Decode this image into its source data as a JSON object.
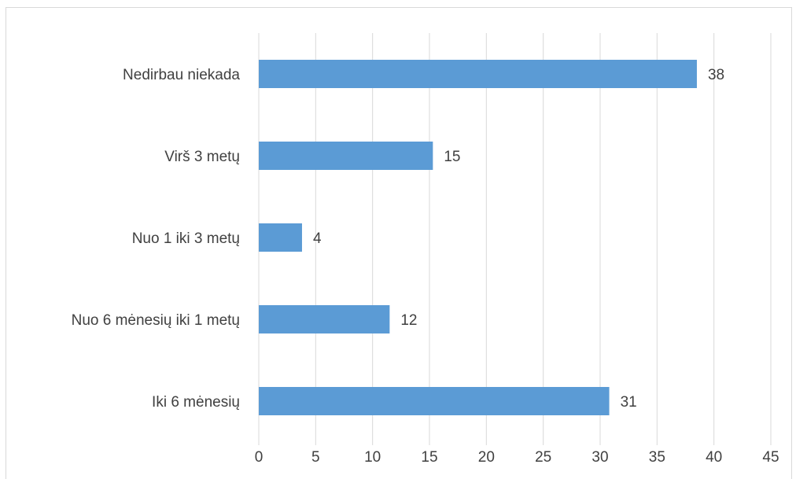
{
  "chart_data": {
    "type": "bar",
    "orientation": "horizontal",
    "title": "",
    "xlabel": "",
    "ylabel": "",
    "categories": [
      "Nedirbau niekada",
      "Virš 3 metų",
      "Nuo 1 iki 3 metų",
      "Nuo 6 mėnesių iki 1 metų",
      "Iki 6 mėnesių"
    ],
    "values": [
      38.5,
      15.3,
      3.8,
      11.5,
      30.8
    ],
    "data_labels": [
      "38",
      "15",
      "4",
      "12",
      "31"
    ],
    "xlim": [
      0,
      45
    ],
    "xticks": [
      0,
      5,
      10,
      15,
      20,
      25,
      30,
      35,
      40,
      45
    ],
    "xtick_labels": [
      "0",
      "5",
      "10",
      "15",
      "20",
      "25",
      "30",
      "35",
      "40",
      "45"
    ],
    "grid": "vertical",
    "legend": "none",
    "bar_color": "#5b9bd5",
    "grid_color": "#d9d9d9"
  }
}
